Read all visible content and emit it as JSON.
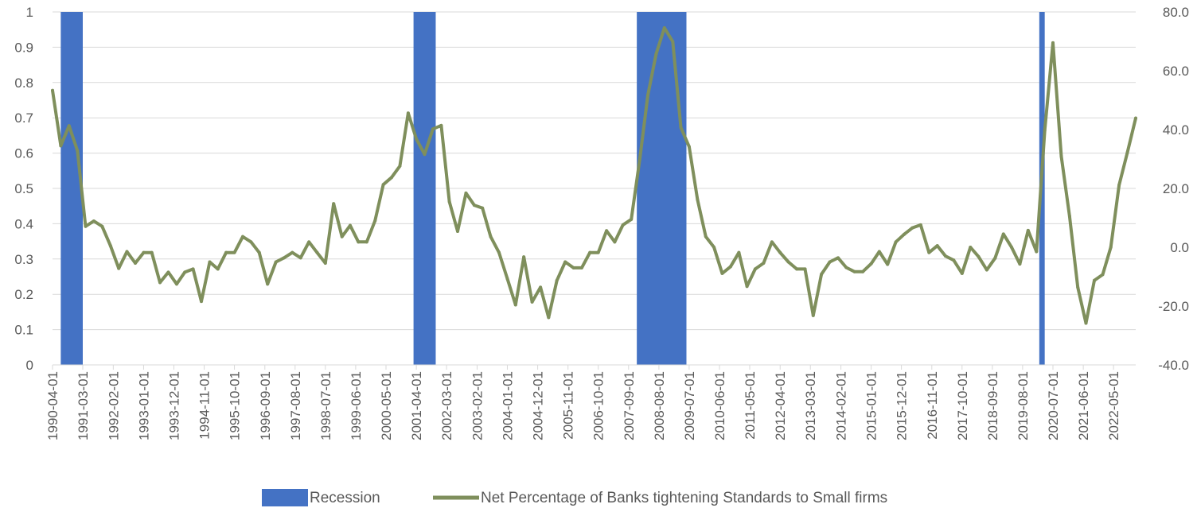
{
  "chart_data": {
    "type": "bar+line",
    "title": "",
    "x_tick_labels": [
      "1990-04-01",
      "1991-03-01",
      "1992-02-01",
      "1993-01-01",
      "1993-12-01",
      "1994-11-01",
      "1995-10-01",
      "1996-09-01",
      "1997-08-01",
      "1998-07-01",
      "1999-06-01",
      "2000-05-01",
      "2001-04-01",
      "2002-03-01",
      "2003-02-01",
      "2004-01-01",
      "2004-12-01",
      "2005-11-01",
      "2006-10-01",
      "2007-09-01",
      "2008-08-01",
      "2009-07-01",
      "2010-06-01",
      "2011-05-01",
      "2012-04-01",
      "2013-03-01",
      "2014-02-01",
      "2015-01-01",
      "2015-12-01",
      "2016-11-01",
      "2017-10-01",
      "2018-09-01",
      "2019-08-01",
      "2020-07-01",
      "2021-06-01",
      "2022-05-01"
    ],
    "y_left": {
      "ylim": [
        0,
        1
      ],
      "ticks": [
        "0",
        "0.1",
        "0.2",
        "0.3",
        "0.4",
        "0.5",
        "0.6",
        "0.7",
        "0.8",
        "0.9",
        "1"
      ]
    },
    "y_right": {
      "ylim": [
        -40,
        80
      ],
      "ticks": [
        "-40.0",
        "-20.0",
        "0.0",
        "20.0",
        "40.0",
        "60.0",
        "80.0"
      ]
    },
    "grid": "horizontal",
    "legend_position": "bottom",
    "series": [
      {
        "name": "Recession",
        "type": "bar",
        "axis": "left",
        "color": "#4472C4",
        "periods": [
          [
            "1990-07-01",
            "1991-03-01"
          ],
          [
            "2001-03-01",
            "2001-11-01"
          ],
          [
            "2007-12-01",
            "2009-06-01"
          ],
          [
            "2020-02-01",
            "2020-04-01"
          ]
        ],
        "value": 1
      },
      {
        "name": "Net Percentage of Banks tightening Standards to Small firms",
        "type": "line",
        "axis": "right",
        "color": "#7F8F5C",
        "x": [
          "1990-04-01",
          "1990-07-01",
          "1990-10-01",
          "1991-01-01",
          "1991-04-01",
          "1991-07-01",
          "1991-10-01",
          "1992-01-01",
          "1992-04-01",
          "1992-07-01",
          "1992-10-01",
          "1993-01-01",
          "1993-04-01",
          "1993-07-01",
          "1993-10-01",
          "1994-01-01",
          "1994-04-01",
          "1994-07-01",
          "1994-10-01",
          "1995-01-01",
          "1995-04-01",
          "1995-07-01",
          "1995-10-01",
          "1996-01-01",
          "1996-04-01",
          "1996-07-01",
          "1996-10-01",
          "1997-01-01",
          "1997-04-01",
          "1997-07-01",
          "1997-10-01",
          "1998-01-01",
          "1998-04-01",
          "1998-07-01",
          "1998-10-01",
          "1999-01-01",
          "1999-04-01",
          "1999-07-01",
          "1999-10-01",
          "2000-01-01",
          "2000-04-01",
          "2000-07-01",
          "2000-10-01",
          "2001-01-01",
          "2001-04-01",
          "2001-07-01",
          "2001-10-01",
          "2002-01-01",
          "2002-04-01",
          "2002-07-01",
          "2002-10-01",
          "2003-01-01",
          "2003-04-01",
          "2003-07-01",
          "2003-10-01",
          "2004-01-01",
          "2004-04-01",
          "2004-07-01",
          "2004-10-01",
          "2005-01-01",
          "2005-04-01",
          "2005-07-01",
          "2005-10-01",
          "2006-01-01",
          "2006-04-01",
          "2006-07-01",
          "2006-10-01",
          "2007-01-01",
          "2007-04-01",
          "2007-07-01",
          "2007-10-01",
          "2008-01-01",
          "2008-04-01",
          "2008-07-01",
          "2008-10-01",
          "2009-01-01",
          "2009-04-01",
          "2009-07-01",
          "2009-10-01",
          "2010-01-01",
          "2010-04-01",
          "2010-07-01",
          "2010-10-01",
          "2011-01-01",
          "2011-04-01",
          "2011-07-01",
          "2011-10-01",
          "2012-01-01",
          "2012-04-01",
          "2012-07-01",
          "2012-10-01",
          "2013-01-01",
          "2013-04-01",
          "2013-07-01",
          "2013-10-01",
          "2014-01-01",
          "2014-04-01",
          "2014-07-01",
          "2014-10-01",
          "2015-01-01",
          "2015-04-01",
          "2015-07-01",
          "2015-10-01",
          "2016-01-01",
          "2016-04-01",
          "2016-07-01",
          "2016-10-01",
          "2017-01-01",
          "2017-04-01",
          "2017-07-01",
          "2017-10-01",
          "2018-01-01",
          "2018-04-01",
          "2018-07-01",
          "2018-10-01",
          "2019-01-01",
          "2019-04-01",
          "2019-07-01",
          "2019-10-01",
          "2020-01-01",
          "2020-04-01",
          "2020-07-01",
          "2020-10-01",
          "2021-01-01",
          "2021-04-01",
          "2021-07-01",
          "2021-10-01",
          "2022-01-01",
          "2022-04-01",
          "2022-07-01",
          "2022-10-01",
          "2023-01-01"
        ],
        "values": [
          53.3,
          34.5,
          41.3,
          32.8,
          7.1,
          8.9,
          7.1,
          0.5,
          -7.2,
          -1.5,
          -5.4,
          -1.8,
          -1.8,
          -12,
          -8.5,
          -12.5,
          -8.5,
          -7.4,
          -18.4,
          -5,
          -7.4,
          -1.8,
          -1.8,
          3.6,
          1.8,
          -1.8,
          -12.5,
          -5,
          -3.6,
          -1.8,
          -3.6,
          1.8,
          -1.8,
          -5.4,
          14.8,
          3.6,
          7.4,
          1.8,
          1.8,
          9,
          21.3,
          23.7,
          27.6,
          45.6,
          36.8,
          31.6,
          40.2,
          41.4,
          15.5,
          5.4,
          18.4,
          14.3,
          13.3,
          3.6,
          -1.8,
          -10.7,
          -19.6,
          -3.3,
          -18.6,
          -13.6,
          -23.9,
          -11.3,
          -5,
          -7,
          -7,
          -1.8,
          -1.8,
          5.6,
          1.8,
          7.6,
          9.5,
          29.6,
          51.7,
          65.7,
          74.6,
          69.9,
          40.7,
          34.2,
          16.2,
          3.6,
          0,
          -8.9,
          -6.6,
          -1.8,
          -13.3,
          -7.4,
          -5.4,
          1.8,
          -1.8,
          -5,
          -7.4,
          -7.4,
          -23.2,
          -9.2,
          -5,
          -3.6,
          -6.9,
          -8.3,
          -8.3,
          -5.6,
          -1.5,
          -5.8,
          1.8,
          4.4,
          6.6,
          7.6,
          -1.8,
          0.5,
          -3,
          -4.4,
          -8.9,
          0,
          -3.2,
          -7.7,
          -3.7,
          4.5,
          0,
          -5.7,
          5.7,
          -1.5,
          39.7,
          69.5,
          30.9,
          10.5,
          -13.6,
          -25.8,
          -11.3,
          -9.3,
          0,
          21.1,
          32.2,
          43.9
        ]
      }
    ]
  }
}
